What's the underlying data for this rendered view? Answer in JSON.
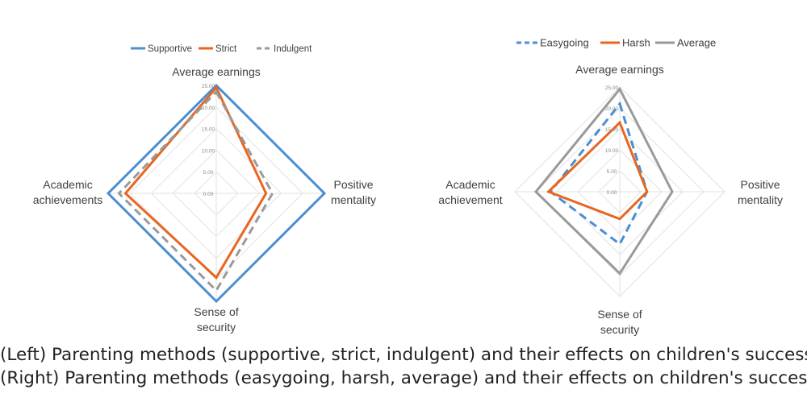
{
  "captions": {
    "left": "(Left) Parenting methods (supportive, strict, indulgent) and their effects on children's success",
    "right": "(Right) Parenting methods (easygoing, harsh, average) and their effects on children's success"
  },
  "chart_data": [
    {
      "type": "radar",
      "axes": [
        [
          "Average earnings"
        ],
        [
          "Positive",
          "mentality"
        ],
        [
          "Sense of",
          "security"
        ],
        [
          "Academic",
          "achievements"
        ]
      ],
      "ticks": [
        "0.00",
        "5.00",
        "10.00",
        "15.00",
        "20.00",
        "25.00"
      ],
      "rmax": 25,
      "series": [
        {
          "name": "Supportive",
          "values": [
            25,
            25,
            25,
            25
          ],
          "color": "#4a8fd1",
          "dash": "solid"
        },
        {
          "name": "Strict",
          "values": [
            24.5,
            11.5,
            19.5,
            21
          ],
          "color": "#e8661f",
          "dash": "solid"
        },
        {
          "name": "Indulgent",
          "values": [
            23.5,
            13,
            22.5,
            22.5
          ],
          "color": "#9a9a9a",
          "dash": "dashed"
        }
      ],
      "legend_position": "top"
    },
    {
      "type": "radar",
      "axes": [
        [
          "Average earnings"
        ],
        [
          "Positive",
          "mentality"
        ],
        [
          "Sense of",
          "security"
        ],
        [
          "Academic",
          "achievement"
        ]
      ],
      "ticks": [
        "0.00",
        "5.00",
        "10.00",
        "15.00",
        "20.00",
        "25.00"
      ],
      "rmax": 25,
      "series": [
        {
          "name": "Easygoing",
          "values": [
            21,
            6.5,
            12.5,
            16.5
          ],
          "color": "#4a8fd1",
          "dash": "dashed"
        },
        {
          "name": "Harsh",
          "values": [
            16.5,
            6.5,
            6.5,
            17
          ],
          "color": "#e8661f",
          "dash": "solid"
        },
        {
          "name": "Average",
          "values": [
            24.5,
            12.5,
            19.5,
            20
          ],
          "color": "#9a9a9a",
          "dash": "solid"
        }
      ],
      "legend_position": "top"
    }
  ]
}
